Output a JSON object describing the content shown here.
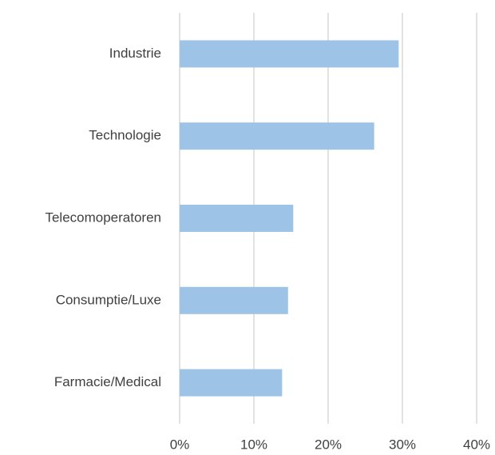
{
  "chart_data": {
    "type": "barh",
    "categories": [
      "Industrie",
      "Technologie",
      "Telecomoperatoren",
      "Consumptie/Luxe",
      "Farmacie/Medical"
    ],
    "values": [
      29.5,
      26.2,
      15.3,
      14.6,
      13.8
    ],
    "color": "#9dc3e6",
    "xlim": [
      0,
      40
    ],
    "xticks": [
      {
        "value": 0,
        "label": "0%"
      },
      {
        "value": 10,
        "label": "10%"
      },
      {
        "value": 20,
        "label": "20%"
      },
      {
        "value": 30,
        "label": "30%"
      },
      {
        "value": 40,
        "label": "40%"
      }
    ],
    "grid": true
  }
}
